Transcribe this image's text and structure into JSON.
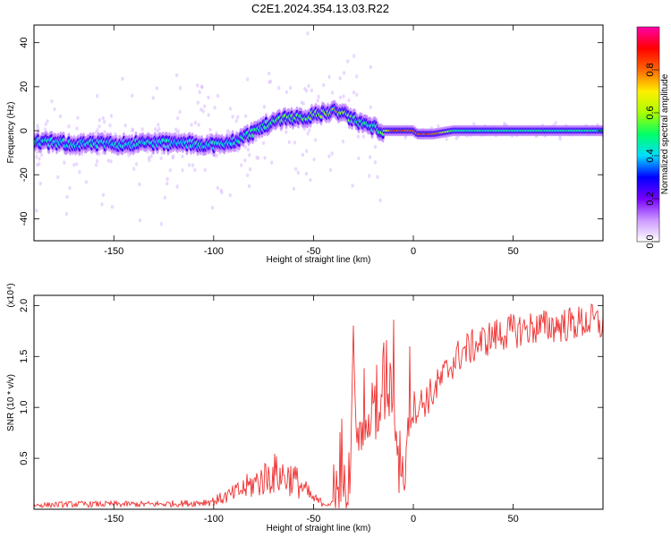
{
  "title": "C2E1.2024.354.13.03.R22",
  "chart_data": [
    {
      "type": "heatmap",
      "title": "C2E1.2024.354.13.03.R22",
      "xlabel": "Height of straight line (km)",
      "ylabel": "Frequency (Hz)",
      "xlim": [
        -190,
        95
      ],
      "ylim": [
        -50,
        48
      ],
      "xticks": [
        "-150",
        "-100",
        "-50",
        "0",
        "50"
      ],
      "xtick_values": [
        -150,
        -100,
        -50,
        0,
        50
      ],
      "yticks": [
        "-40",
        "-20",
        "0",
        "20",
        "40"
      ],
      "ytick_values": [
        -40,
        -20,
        0,
        20,
        40
      ],
      "colorbar": {
        "label": "Normalized spectral amplitude",
        "range": [
          0,
          1
        ],
        "ticks": [
          "0.0",
          "0.2",
          "0.4",
          "0.6",
          "0.8"
        ],
        "tick_values": [
          0,
          0.2,
          0.4,
          0.6,
          0.8
        ],
        "colormap": [
          "#ffffff",
          "#cc99ff",
          "#7700ff",
          "#0000ff",
          "#00ddff",
          "#00ff66",
          "#aaff00",
          "#ffee00",
          "#ff6600",
          "#ff0000",
          "#ff00aa"
        ]
      },
      "ridge": {
        "x": [
          -190,
          -170,
          -150,
          -130,
          -110,
          -95,
          -85,
          -75,
          -65,
          -55,
          -45,
          -38,
          -30,
          -22,
          -15,
          -10,
          -5,
          0,
          2,
          10,
          20,
          40,
          60,
          80,
          95
        ],
        "y": [
          -5,
          -6,
          -6,
          -5.5,
          -6,
          -6.5,
          -3,
          2,
          6,
          6,
          8,
          9,
          5,
          2,
          0,
          0,
          0,
          0,
          -1.5,
          -1.5,
          0,
          0,
          0,
          0,
          0
        ],
        "amplitude": [
          0.45,
          0.45,
          0.45,
          0.45,
          0.45,
          0.45,
          0.5,
          0.55,
          0.6,
          0.6,
          0.7,
          0.85,
          0.55,
          0.5,
          0.6,
          0.95,
          0.95,
          0.95,
          0.95,
          0.95,
          0.5,
          0.5,
          0.5,
          0.5,
          0.5
        ]
      }
    },
    {
      "type": "line",
      "xlabel": "Height of straight line (km)",
      "ylabel": "SNR (10 * v/v)",
      "y_multiplier": "(x10⁴)",
      "xlim": [
        -190,
        95
      ],
      "ylim": [
        0,
        2.1
      ],
      "xticks": [
        "-150",
        "-100",
        "-50",
        "0",
        "50"
      ],
      "xtick_values": [
        -150,
        -100,
        -50,
        0,
        50
      ],
      "yticks": [
        "0.5",
        "1.0",
        "1.5",
        "2.0"
      ],
      "ytick_values": [
        0.5,
        1.0,
        1.5,
        2.0
      ],
      "color": "#ee3333",
      "series": [
        {
          "x": [
            -190,
            -170,
            -150,
            -130,
            -110,
            -100,
            -90,
            -80,
            -70,
            -60,
            -55,
            -50,
            -45,
            -40,
            -36,
            -32,
            -30,
            -28,
            -25,
            -20,
            -15,
            -10,
            -8,
            -5,
            -2,
            0,
            5,
            10,
            15,
            20,
            25,
            30,
            40,
            50,
            60,
            70,
            80,
            90,
            95
          ],
          "y": [
            0.04,
            0.05,
            0.05,
            0.05,
            0.06,
            0.08,
            0.15,
            0.25,
            0.35,
            0.3,
            0.2,
            0.1,
            0.06,
            0.05,
            0.1,
            0.4,
            1.6,
            0.6,
            0.7,
            0.8,
            0.9,
            1.2,
            0.5,
            0.3,
            0.8,
            1.0,
            1.05,
            1.15,
            1.3,
            1.45,
            1.55,
            1.6,
            1.7,
            1.75,
            1.78,
            1.8,
            1.82,
            1.85,
            1.8
          ]
        }
      ]
    }
  ]
}
